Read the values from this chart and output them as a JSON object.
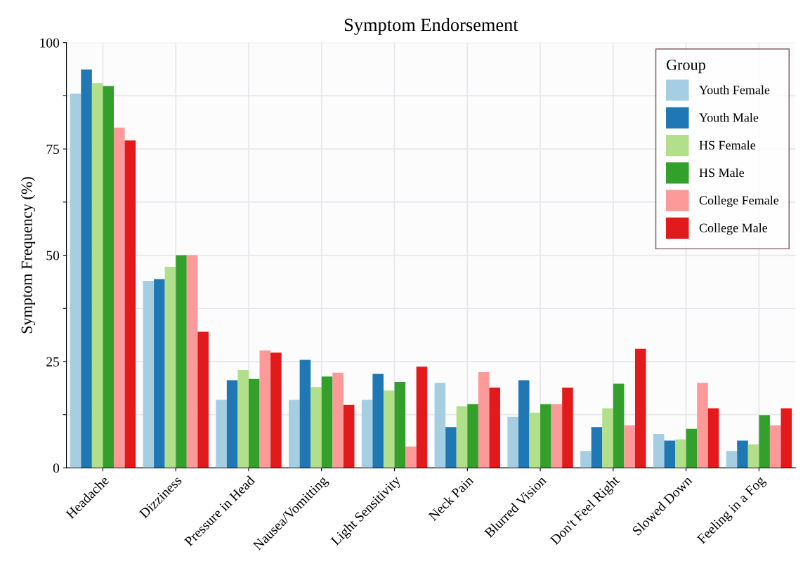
{
  "chart_data": {
    "type": "bar",
    "title": "Symptom Endorsement",
    "ylabel": "Symptom Frequency (%)",
    "legend_title": "Group",
    "categories": [
      "Headache",
      "Dizziness",
      "Pressure in Head",
      "Nausea/Vomitting",
      "Light Sensitivity",
      "Neck Pain",
      "Blurred Vision",
      "Don't Feel Right",
      "Slowed Down",
      "Feeling in a Fog"
    ],
    "series": [
      {
        "name": "Youth Female",
        "color": "#a6cee3",
        "values": [
          88,
          44,
          16,
          16,
          16,
          20,
          12,
          4,
          8,
          4
        ]
      },
      {
        "name": "Youth Male",
        "color": "#1f78b4",
        "values": [
          93.7,
          44.4,
          20.6,
          25.4,
          22.1,
          9.6,
          20.6,
          9.6,
          6.4,
          6.4
        ]
      },
      {
        "name": "HS Female",
        "color": "#b2df8a",
        "values": [
          90.5,
          47.3,
          23,
          19,
          18.2,
          14.5,
          13,
          14,
          6.7,
          5.5
        ]
      },
      {
        "name": "HS Male",
        "color": "#33a02c",
        "values": [
          89.8,
          50,
          20.9,
          21.5,
          20.2,
          15,
          15,
          19.8,
          9.2,
          12.4
        ]
      },
      {
        "name": "College Female",
        "color": "#fb9a99",
        "values": [
          80,
          50,
          27.6,
          22.4,
          5,
          22.5,
          15,
          10,
          20,
          10
        ]
      },
      {
        "name": "College Male",
        "color": "#e31a1c",
        "values": [
          77,
          32,
          27.1,
          14.8,
          23.8,
          18.9,
          18.9,
          28,
          14,
          14
        ]
      }
    ],
    "ylim": [
      0,
      100
    ],
    "yticks": [
      0,
      {
        "value": 12.5,
        "label": null
      },
      25,
      {
        "value": 37.5,
        "label": null
      },
      50,
      {
        "value": 62.5,
        "label": null
      },
      75,
      {
        "value": 87.5,
        "label": null
      },
      100
    ],
    "grid": true,
    "legend": "top right"
  }
}
